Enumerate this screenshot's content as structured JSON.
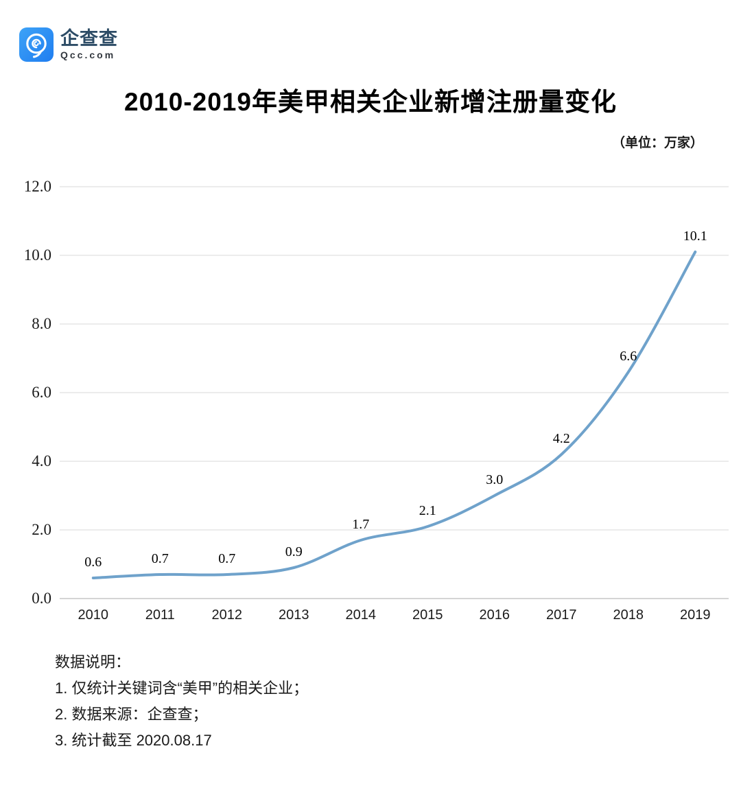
{
  "brand": {
    "name": "企查查",
    "domain": "Qcc.com",
    "icon": "qcc-logo-icon",
    "brand_blue": "#2a8cf2"
  },
  "header": {
    "title": "2010-2019年美甲相关企业新增注册量变化",
    "unit_label": "（单位：万家）"
  },
  "chart_data": {
    "type": "line",
    "title": "2010-2019年美甲相关企业新增注册量变化",
    "unit": "万家",
    "categories": [
      "2010",
      "2011",
      "2012",
      "2013",
      "2014",
      "2015",
      "2016",
      "2017",
      "2018",
      "2019"
    ],
    "values": [
      0.6,
      0.7,
      0.7,
      0.9,
      1.7,
      2.1,
      3.0,
      4.2,
      6.6,
      10.1
    ],
    "point_labels": [
      "0.6",
      "0.7",
      "0.7",
      "0.9",
      "1.7",
      "2.1",
      "3.0",
      "4.2",
      "6.6",
      "10.1"
    ],
    "xlabel": "",
    "ylabel": "",
    "ylim": [
      0,
      12
    ],
    "ytick_step": 2,
    "yticks": [
      "0.0",
      "2.0",
      "4.0",
      "6.0",
      "8.0",
      "10.0",
      "12.0"
    ],
    "grid": "horizontal",
    "legend": "none",
    "smooth": true,
    "line_color": "#6fa2cb",
    "grid_color": "#d9d9d9",
    "axis_color": "#c6c6c6"
  },
  "notes": {
    "heading": "数据说明：",
    "items": [
      "1. 仅统计关键词含“美甲”的相关企业；",
      "2. 数据来源：企查查；",
      "3. 统计截至 2020.08.17"
    ]
  }
}
